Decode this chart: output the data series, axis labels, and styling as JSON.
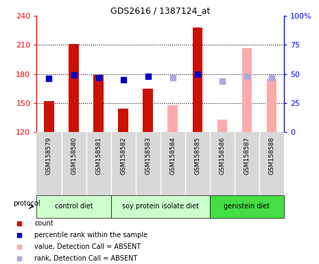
{
  "title": "GDS2616 / 1387124_at",
  "samples": [
    "GSM158579",
    "GSM158580",
    "GSM158581",
    "GSM158582",
    "GSM158583",
    "GSM158584",
    "GSM158585",
    "GSM158586",
    "GSM158587",
    "GSM158588"
  ],
  "ylim_left": [
    120,
    240
  ],
  "ylim_right": [
    0,
    100
  ],
  "yticks_left": [
    120,
    150,
    180,
    210,
    240
  ],
  "yticks_right": [
    0,
    25,
    50,
    75,
    100
  ],
  "bar_values": [
    152,
    211,
    179,
    144,
    165,
    148,
    228,
    133,
    207,
    175
  ],
  "bar_present": [
    true,
    true,
    true,
    true,
    true,
    false,
    true,
    false,
    false,
    false
  ],
  "rank_values": [
    46,
    49,
    47,
    45,
    48,
    47,
    50,
    44,
    48,
    47
  ],
  "rank_present": [
    true,
    true,
    true,
    true,
    true,
    false,
    true,
    false,
    false,
    false
  ],
  "color_bar_present": "#cc1100",
  "color_bar_absent": "#ffaaaa",
  "color_rank_present": "#0000cc",
  "color_rank_absent": "#aaaadd",
  "bar_width": 0.4,
  "grid_lines": [
    150,
    180,
    210
  ],
  "protocols": [
    {
      "label": "control diet",
      "start": 0,
      "end": 3,
      "color": "#ccffcc"
    },
    {
      "label": "soy protein isolate diet",
      "start": 3,
      "end": 7,
      "color": "#ccffcc"
    },
    {
      "label": "genistein diet",
      "start": 7,
      "end": 10,
      "color": "#44dd44"
    }
  ],
  "legend_items": [
    {
      "label": "count",
      "color": "#cc1100"
    },
    {
      "label": "percentile rank within the sample",
      "color": "#0000cc"
    },
    {
      "label": "value, Detection Call = ABSENT",
      "color": "#ffaaaa"
    },
    {
      "label": "rank, Detection Call = ABSENT",
      "color": "#aaaadd"
    }
  ]
}
